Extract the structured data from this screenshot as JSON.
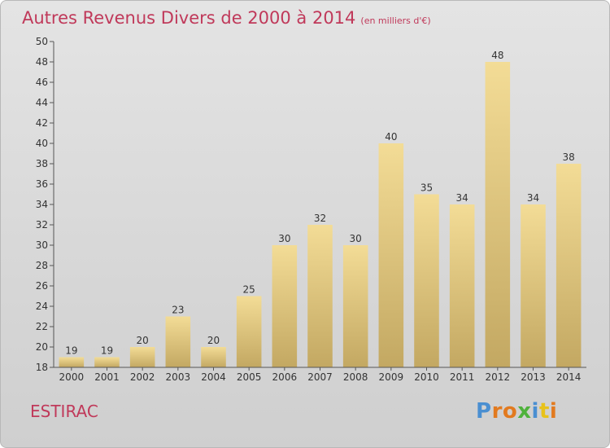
{
  "header": {
    "title": "Autres Revenus Divers de 2000 à 2014",
    "subtitle": "(en milliers d'€)"
  },
  "footer": {
    "place": "ESTIRAC",
    "logo": "Proxiti"
  },
  "colors": {
    "title": "#c0395a",
    "bar_light": "#f3dc96",
    "bar_dark": "#c3a862",
    "logo_letters": [
      "#4a8fd1",
      "#e27a1f",
      "#e27a1f",
      "#4fb23c",
      "#4a8fd1",
      "#e8c21b",
      "#e27a1f"
    ]
  },
  "chart_data": {
    "type": "bar",
    "categories": [
      "2000",
      "2001",
      "2002",
      "2003",
      "2004",
      "2005",
      "2006",
      "2007",
      "2008",
      "2009",
      "2010",
      "2011",
      "2012",
      "2013",
      "2014"
    ],
    "values": [
      19,
      19,
      20,
      23,
      20,
      25,
      30,
      32,
      30,
      40,
      35,
      34,
      48,
      34,
      38
    ],
    "data_labels": [
      "19",
      "19",
      "20",
      "23",
      "20",
      "25",
      "30",
      "32",
      "30",
      "40",
      "35",
      "34",
      "48",
      "34",
      "38"
    ],
    "ylim": [
      18,
      50
    ],
    "yticks": [
      18,
      20,
      22,
      24,
      26,
      28,
      30,
      32,
      34,
      36,
      38,
      40,
      42,
      44,
      46,
      48,
      50
    ],
    "grid": false
  }
}
